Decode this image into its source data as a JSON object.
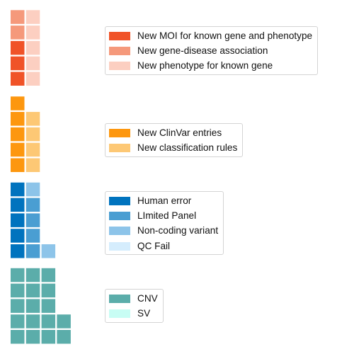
{
  "chart_data": [
    {
      "type": "waffle",
      "series": [
        {
          "name": "New MOI for known gene and phenotype",
          "value": 3,
          "color": "#f05328"
        },
        {
          "name": "New gene-disease association",
          "value": 2,
          "color": "#f5997b"
        },
        {
          "name": "New phenotype for known gene",
          "value": 5,
          "color": "#fccfc1"
        }
      ],
      "legend_position": "right"
    },
    {
      "type": "waffle",
      "series": [
        {
          "name": "New ClinVar entries",
          "value": 5,
          "color": "#fd970f"
        },
        {
          "name": "New classification rules",
          "value": 4,
          "color": "#fdc875"
        }
      ],
      "legend_position": "right"
    },
    {
      "type": "waffle",
      "series": [
        {
          "name": "Human error",
          "value": 5,
          "color": "#0073be"
        },
        {
          "name": "LImited Panel",
          "value": 4,
          "color": "#4a9ed2"
        },
        {
          "name": "Non-coding variant",
          "value": 2,
          "color": "#8dc4e9"
        },
        {
          "name": "QC Fail",
          "value": 0,
          "color": "#d5edfd"
        }
      ],
      "legend_position": "right"
    },
    {
      "type": "waffle",
      "series": [
        {
          "name": "CNV",
          "value": 17,
          "color": "#5badaa"
        },
        {
          "name": "SV",
          "value": 0,
          "color": "#c8fdf4"
        }
      ],
      "legend_position": "right"
    }
  ]
}
